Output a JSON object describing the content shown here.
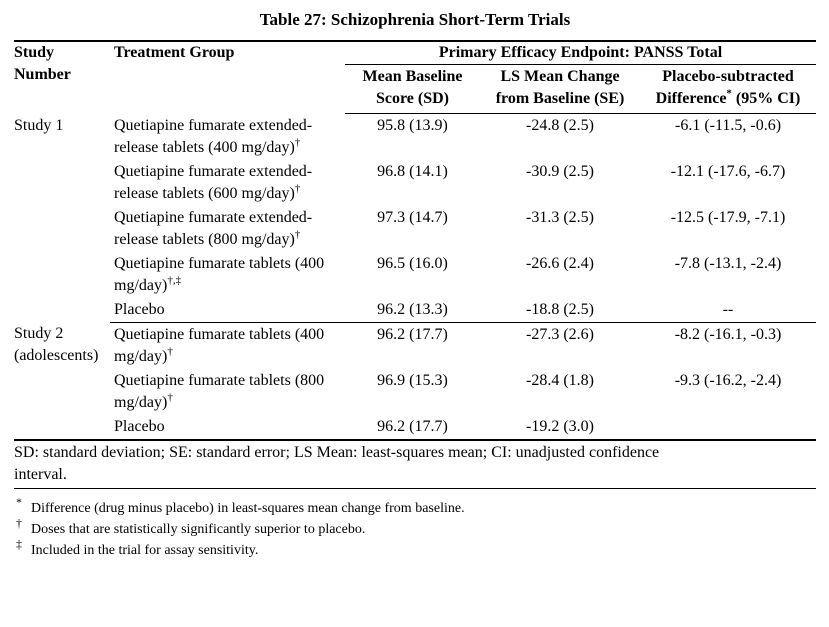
{
  "title": "Table 27: Schizophrenia Short-Term Trials",
  "table": {
    "headers": {
      "study_number": "Study Number",
      "treatment_group": "Treatment Group",
      "endpoint": "Primary Efficacy Endpoint: PANSS Total",
      "sub": {
        "baseline": "Mean Baseline Score (SD)",
        "change": "LS Mean Change from Baseline (SE)",
        "difference_pre": "Placebo-subtracted Difference",
        "difference_sup": "*",
        "difference_post": " (95% CI)"
      }
    },
    "sections": [
      {
        "study": "Study 1",
        "rows": [
          {
            "treatment": "Quetiapine fumarate extended-release tablets (400 mg/day)",
            "sup": "†",
            "baseline": "95.8 (13.9)",
            "change": "-24.8 (2.5)",
            "difference": "-6.1 (-11.5, -0.6)"
          },
          {
            "treatment": "Quetiapine fumarate extended-release tablets (600 mg/day)",
            "sup": "†",
            "baseline": "96.8 (14.1)",
            "change": "-30.9 (2.5)",
            "difference": "-12.1 (-17.6, -6.7)"
          },
          {
            "treatment": "Quetiapine fumarate extended-release tablets (800 mg/day)",
            "sup": "†",
            "baseline": "97.3 (14.7)",
            "change": "-31.3 (2.5)",
            "difference": "-12.5 (-17.9, -7.1)"
          },
          {
            "treatment": "Quetiapine fumarate tablets (400 mg/day)",
            "sup": "†,‡",
            "baseline": "96.5 (16.0)",
            "change": "-26.6 (2.4)",
            "difference": "-7.8 (-13.1, -2.4)"
          },
          {
            "treatment": "Placebo",
            "sup": "",
            "baseline": "96.2 (13.3)",
            "change": "-18.8 (2.5)",
            "difference": "--"
          }
        ]
      },
      {
        "study": "Study 2 (adolescents)",
        "rows": [
          {
            "treatment": "Quetiapine fumarate tablets (400 mg/day)",
            "sup": "†",
            "baseline": "96.2 (17.7)",
            "change": "-27.3 (2.6)",
            "difference": "-8.2 (-16.1, -0.3)"
          },
          {
            "treatment": "Quetiapine fumarate tablets (800 mg/day)",
            "sup": "†",
            "baseline": "96.9 (15.3)",
            "change": "-28.4 (1.8)",
            "difference": "-9.3 (-16.2, -2.4)"
          },
          {
            "treatment": "Placebo",
            "sup": "",
            "baseline": "96.2 (17.7)",
            "change": "-19.2 (3.0)",
            "difference": ""
          }
        ]
      }
    ],
    "abbrev_lines": [
      "SD: standard deviation; SE: standard error; LS Mean: least-squares mean; CI: unadjusted confidence",
      "interval."
    ]
  },
  "footnotes": [
    {
      "symbol": "*",
      "text": "Difference (drug minus placebo) in least-squares mean change from baseline."
    },
    {
      "symbol": "†",
      "text": "Doses that are statistically significantly superior to placebo."
    },
    {
      "symbol": "‡",
      "text": "Included in the trial for assay sensitivity."
    }
  ]
}
